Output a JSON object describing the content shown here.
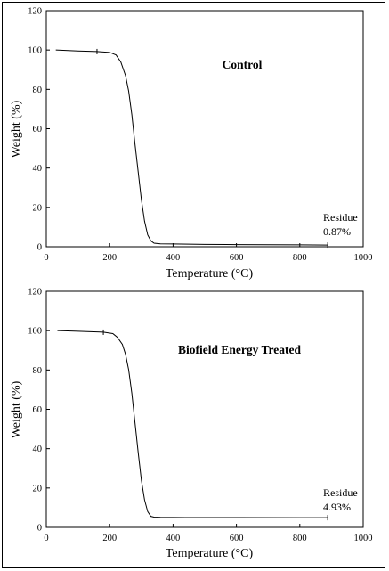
{
  "chart_data": [
    {
      "type": "line",
      "title": "Control",
      "xlabel": "Temperature (°C)",
      "ylabel": "Weight (%)",
      "xlim": [
        0,
        1000
      ],
      "ylim": [
        0,
        120
      ],
      "x_ticks": [
        "0",
        "200",
        "400",
        "600",
        "800",
        "1000"
      ],
      "y_ticks": [
        "0",
        "20",
        "40",
        "60",
        "80",
        "100",
        "120"
      ],
      "grid": false,
      "series": [
        {
          "x": [
            30,
            100,
            160,
            200,
            220,
            235,
            250,
            260,
            270,
            280,
            290,
            300,
            310,
            320,
            330,
            340,
            360,
            400,
            500,
            600,
            700,
            800,
            888
          ],
          "y": [
            100,
            99.5,
            99.2,
            98.8,
            97.5,
            94,
            87,
            79,
            67,
            52,
            38,
            24,
            13,
            6,
            3,
            1.8,
            1.5,
            1.4,
            1.2,
            1.1,
            1.0,
            0.95,
            0.87
          ]
        }
      ],
      "annotations": [
        {
          "text": "Residue",
          "x": 888,
          "y": 0.87
        },
        {
          "text": "0.87%",
          "x": 888,
          "y": 0.87
        }
      ]
    },
    {
      "type": "line",
      "title": "Biofield Energy Treated",
      "xlabel": "Temperature (°C)",
      "ylabel": "Weight (%)",
      "xlim": [
        0,
        1000
      ],
      "ylim": [
        0,
        120
      ],
      "x_ticks": [
        "0",
        "200",
        "400",
        "600",
        "800",
        "1000"
      ],
      "y_ticks": [
        "0",
        "20",
        "40",
        "60",
        "80",
        "100",
        "120"
      ],
      "grid": false,
      "series": [
        {
          "x": [
            35,
            100,
            180,
            210,
            225,
            240,
            250,
            260,
            270,
            280,
            290,
            300,
            310,
            320,
            330,
            340,
            360,
            400,
            440,
            600,
            800,
            888
          ],
          "y": [
            100,
            99.7,
            99.2,
            98.5,
            96.5,
            93,
            88,
            80,
            68,
            53,
            38,
            24,
            14,
            8,
            5.6,
            5.2,
            5.1,
            5.05,
            5.0,
            4.97,
            4.95,
            4.93
          ]
        }
      ],
      "annotations": [
        {
          "text": "Residue",
          "x": 888,
          "y": 4.93
        },
        {
          "text": "4.93%",
          "x": 888,
          "y": 4.93
        }
      ]
    }
  ]
}
